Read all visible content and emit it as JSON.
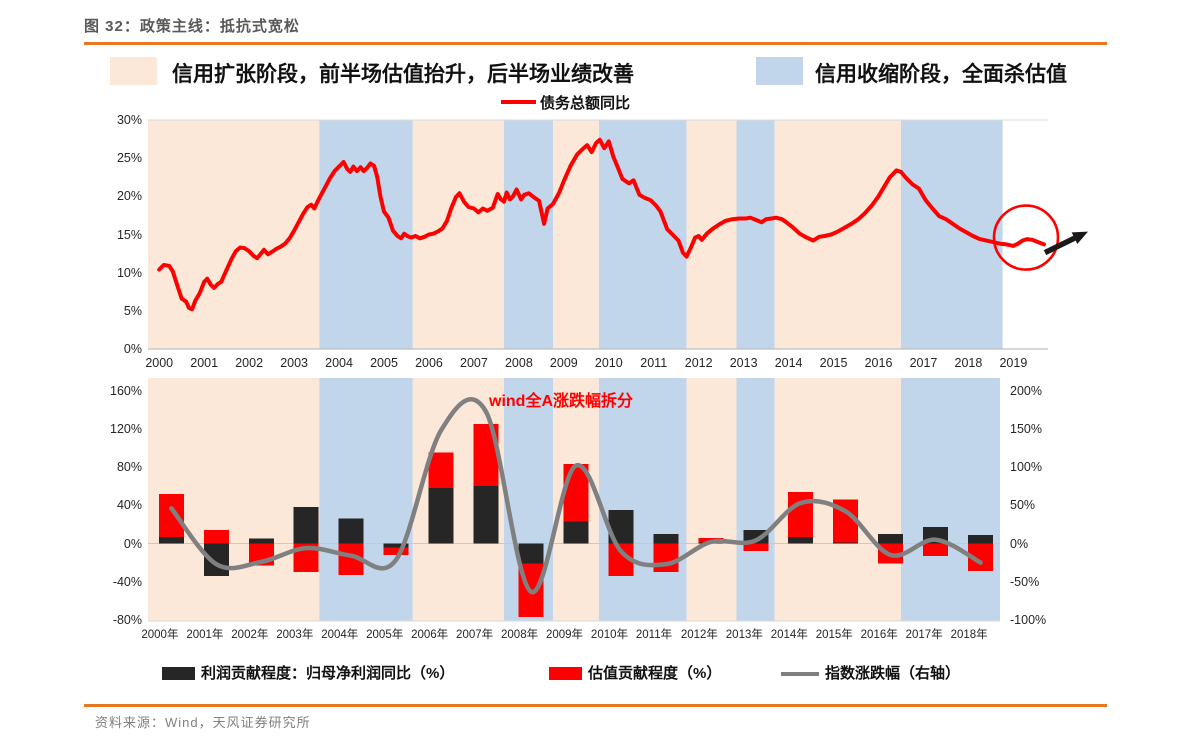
{
  "header": {
    "title": "图 32：政策主线：抵抗式宽松"
  },
  "footer": {
    "source": "资料来源：Wind，天风证券研究所"
  },
  "colors": {
    "accent_orange": "#e87722",
    "expansion_band": "#fce8d8",
    "contraction_band": "#c2d6eb",
    "debt_line": "#ff0000",
    "profit_bar": "#262626",
    "valuation_bar": "#ff0000",
    "index_line": "#808080",
    "annotation_circle": "#ff0000",
    "annotation_arrow": "#1a1a1a"
  },
  "top_legend": {
    "expansion_label": "信用扩张阶段，前半场估值抬升，后半场业绩改善",
    "contraction_label": "信用收缩阶段，全面杀估值",
    "line_label": "债务总额同比"
  },
  "bottom_legend": {
    "profit_label": "利润贡献程度：归母净利润同比（%）",
    "valuation_label": "估值贡献程度（%）",
    "index_label": "指数涨跌幅（右轴）"
  },
  "chart_data": [
    {
      "type": "line",
      "title": "债务总额同比",
      "ylabel": "",
      "xlabel": "",
      "ylim": [
        0,
        30
      ],
      "grid": false,
      "legend_position": "top-center",
      "y_tick_labels": [
        "30%",
        "25%",
        "20%",
        "15%",
        "10%",
        "5%",
        "0%"
      ],
      "x_tick_labels": [
        "2000",
        "2001",
        "2002",
        "2003",
        "2004",
        "2005",
        "2006",
        "2007",
        "2008",
        "2009",
        "2010",
        "2011",
        "2012",
        "2013",
        "2014",
        "2015",
        "2016",
        "2017",
        "2018",
        "2019"
      ],
      "bands": [
        {
          "phase": "expansion",
          "from": -0.25,
          "to": 3.56
        },
        {
          "phase": "contraction",
          "from": 3.56,
          "to": 5.64
        },
        {
          "phase": "expansion",
          "from": 5.64,
          "to": 7.67
        },
        {
          "phase": "contraction",
          "from": 7.67,
          "to": 8.76
        },
        {
          "phase": "expansion",
          "from": 8.76,
          "to": 9.78
        },
        {
          "phase": "contraction",
          "from": 9.78,
          "to": 11.73
        },
        {
          "phase": "expansion",
          "from": 11.73,
          "to": 12.84
        },
        {
          "phase": "contraction",
          "from": 12.84,
          "to": 13.69
        },
        {
          "phase": "expansion",
          "from": 13.69,
          "to": 16.5
        },
        {
          "phase": "contraction",
          "from": 16.5,
          "to": 18.76
        }
      ],
      "annotation": {
        "shape": "circle-with-arrow",
        "year": 19.28,
        "value": 14.2
      },
      "series": [
        {
          "name": "债务总额同比",
          "points": [
            [
              0.0,
              10.4
            ],
            [
              0.1,
              11.0
            ],
            [
              0.22,
              10.9
            ],
            [
              0.3,
              10.2
            ],
            [
              0.42,
              8.0
            ],
            [
              0.5,
              6.6
            ],
            [
              0.6,
              6.2
            ],
            [
              0.66,
              5.4
            ],
            [
              0.73,
              5.2
            ],
            [
              0.8,
              6.3
            ],
            [
              0.9,
              7.3
            ],
            [
              1.0,
              8.8
            ],
            [
              1.07,
              9.2
            ],
            [
              1.15,
              8.4
            ],
            [
              1.22,
              8.0
            ],
            [
              1.3,
              8.5
            ],
            [
              1.38,
              8.8
            ],
            [
              1.5,
              10.4
            ],
            [
              1.6,
              11.7
            ],
            [
              1.7,
              12.8
            ],
            [
              1.8,
              13.3
            ],
            [
              1.9,
              13.2
            ],
            [
              2.0,
              12.8
            ],
            [
              2.1,
              12.2
            ],
            [
              2.18,
              11.9
            ],
            [
              2.25,
              12.4
            ],
            [
              2.33,
              13.0
            ],
            [
              2.42,
              12.4
            ],
            [
              2.5,
              12.7
            ],
            [
              2.6,
              13.1
            ],
            [
              2.7,
              13.4
            ],
            [
              2.8,
              13.8
            ],
            [
              2.9,
              14.5
            ],
            [
              3.0,
              15.5
            ],
            [
              3.1,
              16.6
            ],
            [
              3.2,
              17.7
            ],
            [
              3.3,
              18.6
            ],
            [
              3.38,
              18.9
            ],
            [
              3.45,
              18.4
            ],
            [
              3.52,
              19.3
            ],
            [
              3.6,
              20.2
            ],
            [
              3.7,
              21.3
            ],
            [
              3.8,
              22.4
            ],
            [
              3.9,
              23.3
            ],
            [
              4.0,
              23.9
            ],
            [
              4.1,
              24.5
            ],
            [
              4.18,
              23.6
            ],
            [
              4.25,
              23.2
            ],
            [
              4.32,
              23.9
            ],
            [
              4.4,
              23.3
            ],
            [
              4.48,
              23.8
            ],
            [
              4.55,
              23.3
            ],
            [
              4.62,
              23.7
            ],
            [
              4.7,
              24.3
            ],
            [
              4.78,
              24.0
            ],
            [
              4.85,
              22.5
            ],
            [
              4.92,
              20.0
            ],
            [
              5.0,
              18.0
            ],
            [
              5.1,
              17.2
            ],
            [
              5.2,
              15.5
            ],
            [
              5.3,
              14.8
            ],
            [
              5.38,
              14.5
            ],
            [
              5.45,
              15.1
            ],
            [
              5.52,
              14.8
            ],
            [
              5.6,
              14.6
            ],
            [
              5.7,
              14.8
            ],
            [
              5.8,
              14.5
            ],
            [
              5.9,
              14.7
            ],
            [
              6.0,
              15.0
            ],
            [
              6.1,
              15.1
            ],
            [
              6.2,
              15.4
            ],
            [
              6.3,
              15.8
            ],
            [
              6.4,
              16.8
            ],
            [
              6.5,
              18.5
            ],
            [
              6.6,
              19.9
            ],
            [
              6.68,
              20.4
            ],
            [
              6.78,
              19.3
            ],
            [
              6.88,
              18.6
            ],
            [
              7.0,
              18.4
            ],
            [
              7.1,
              17.9
            ],
            [
              7.2,
              18.4
            ],
            [
              7.3,
              18.1
            ],
            [
              7.42,
              18.5
            ],
            [
              7.53,
              20.3
            ],
            [
              7.6,
              19.6
            ],
            [
              7.67,
              19.3
            ],
            [
              7.73,
              20.5
            ],
            [
              7.8,
              19.6
            ],
            [
              7.87,
              20.0
            ],
            [
              7.95,
              20.9
            ],
            [
              8.05,
              19.6
            ],
            [
              8.12,
              20.2
            ],
            [
              8.22,
              20.4
            ],
            [
              8.33,
              19.9
            ],
            [
              8.45,
              19.4
            ],
            [
              8.56,
              16.4
            ],
            [
              8.64,
              18.4
            ],
            [
              8.76,
              19.0
            ],
            [
              8.9,
              20.5
            ],
            [
              9.0,
              22.0
            ],
            [
              9.15,
              24.0
            ],
            [
              9.3,
              25.5
            ],
            [
              9.42,
              26.2
            ],
            [
              9.52,
              26.7
            ],
            [
              9.62,
              25.8
            ],
            [
              9.72,
              27.0
            ],
            [
              9.8,
              27.4
            ],
            [
              9.9,
              26.3
            ],
            [
              10.0,
              27.2
            ],
            [
              10.1,
              25.2
            ],
            [
              10.2,
              23.8
            ],
            [
              10.3,
              22.3
            ],
            [
              10.45,
              21.7
            ],
            [
              10.55,
              22.1
            ],
            [
              10.68,
              20.2
            ],
            [
              10.8,
              19.8
            ],
            [
              10.93,
              19.5
            ],
            [
              11.05,
              18.8
            ],
            [
              11.15,
              18.0
            ],
            [
              11.3,
              15.7
            ],
            [
              11.45,
              14.8
            ],
            [
              11.55,
              14.2
            ],
            [
              11.65,
              12.6
            ],
            [
              11.73,
              12.1
            ],
            [
              11.82,
              13.2
            ],
            [
              11.92,
              14.6
            ],
            [
              12.0,
              14.8
            ],
            [
              12.07,
              14.3
            ],
            [
              12.18,
              15.1
            ],
            [
              12.3,
              15.7
            ],
            [
              12.45,
              16.3
            ],
            [
              12.6,
              16.8
            ],
            [
              12.75,
              17.0
            ],
            [
              12.9,
              17.1
            ],
            [
              13.05,
              17.1
            ],
            [
              13.15,
              17.2
            ],
            [
              13.28,
              16.9
            ],
            [
              13.4,
              16.6
            ],
            [
              13.5,
              17.0
            ],
            [
              13.62,
              17.1
            ],
            [
              13.72,
              17.2
            ],
            [
              13.85,
              17.0
            ],
            [
              13.95,
              16.6
            ],
            [
              14.1,
              15.9
            ],
            [
              14.25,
              15.1
            ],
            [
              14.4,
              14.6
            ],
            [
              14.55,
              14.2
            ],
            [
              14.68,
              14.7
            ],
            [
              14.8,
              14.8
            ],
            [
              14.95,
              15.0
            ],
            [
              15.1,
              15.4
            ],
            [
              15.25,
              15.9
            ],
            [
              15.4,
              16.4
            ],
            [
              15.55,
              17.0
            ],
            [
              15.7,
              17.8
            ],
            [
              15.85,
              18.8
            ],
            [
              16.0,
              20.0
            ],
            [
              16.1,
              21.0
            ],
            [
              16.25,
              22.5
            ],
            [
              16.4,
              23.4
            ],
            [
              16.5,
              23.2
            ],
            [
              16.6,
              22.5
            ],
            [
              16.75,
              21.6
            ],
            [
              16.9,
              21.0
            ],
            [
              17.05,
              19.5
            ],
            [
              17.2,
              18.4
            ],
            [
              17.35,
              17.4
            ],
            [
              17.5,
              17.0
            ],
            [
              17.65,
              16.4
            ],
            [
              17.8,
              15.8
            ],
            [
              17.95,
              15.3
            ],
            [
              18.1,
              14.8
            ],
            [
              18.25,
              14.4
            ],
            [
              18.4,
              14.2
            ],
            [
              18.55,
              14.0
            ],
            [
              18.7,
              13.8
            ],
            [
              18.85,
              13.7
            ],
            [
              19.0,
              13.5
            ],
            [
              19.1,
              13.8
            ],
            [
              19.2,
              14.2
            ],
            [
              19.3,
              14.4
            ],
            [
              19.42,
              14.3
            ],
            [
              19.55,
              14.0
            ],
            [
              19.68,
              13.7
            ]
          ]
        }
      ]
    },
    {
      "type": "bar",
      "title": "wind全A涨跌幅拆分",
      "left_ylim": [
        -80,
        160
      ],
      "right_ylim": [
        -100,
        200
      ],
      "left_tick_labels": [
        "160%",
        "120%",
        "80%",
        "40%",
        "0%",
        "-40%",
        "-80%"
      ],
      "right_tick_labels": [
        "200%",
        "150%",
        "100%",
        "50%",
        "0%",
        "-50%",
        "-100%"
      ],
      "categories": [
        "2000年",
        "2001年",
        "2002年",
        "2003年",
        "2004年",
        "2005年",
        "2006年",
        "2007年",
        "2008年",
        "2009年",
        "2010年",
        "2011年",
        "2012年",
        "2013年",
        "2014年",
        "2015年",
        "2016年",
        "2017年",
        "2018年"
      ],
      "series": [
        {
          "name": "利润贡献程度：归母净利润同比（%）",
          "role": "profit",
          "axis": "left",
          "render": "bar",
          "values": [
            7,
            -34,
            5,
            38,
            26,
            -4,
            58,
            60,
            -21,
            23,
            35,
            10,
            1,
            14,
            7,
            1,
            10,
            17,
            9
          ]
        },
        {
          "name": "估值贡献程度（%）",
          "role": "valuation",
          "axis": "left",
          "render": "bar",
          "values": [
            45,
            14,
            -23,
            -30,
            -33,
            -8,
            37,
            65,
            -56,
            60,
            -34,
            -30,
            5,
            -8,
            47,
            45,
            -21,
            -13,
            -29
          ]
        },
        {
          "name": "指数涨跌幅（右轴）",
          "role": "index",
          "axis": "right",
          "render": "smooth-line",
          "values": [
            46,
            -27,
            -24,
            -6,
            -16,
            -21,
            148,
            172,
            -63,
            102,
            -10,
            -27,
            2,
            4,
            53,
            42,
            -15,
            5,
            -25
          ]
        }
      ]
    }
  ]
}
